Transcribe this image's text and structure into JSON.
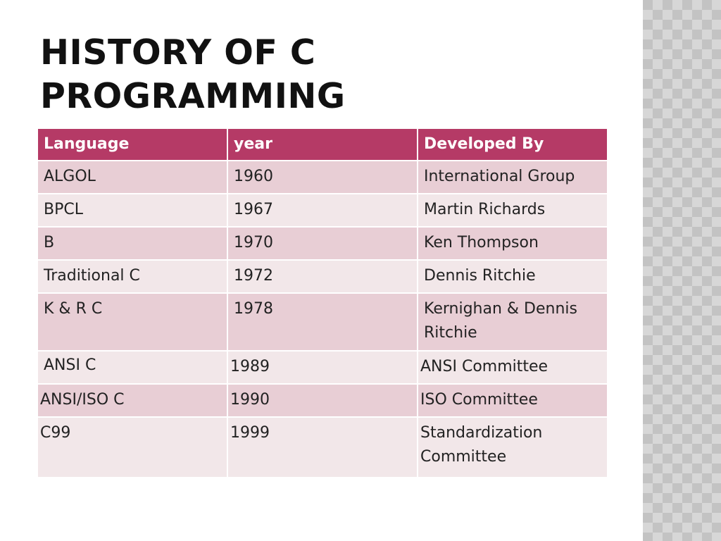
{
  "slide": {
    "title_line1": "HISTORY OF C",
    "title_line2": "PROGRAMMING"
  },
  "table": {
    "headers": [
      "Language",
      "year",
      "Developed By"
    ],
    "rows": [
      [
        "ALGOL",
        "1960",
        "International Group"
      ],
      [
        "BPCL",
        "1967",
        "Martin Richards"
      ],
      [
        "B",
        "1970",
        "Ken Thompson"
      ],
      [
        "Traditional C",
        "1972",
        "Dennis Ritchie"
      ],
      [
        "K & R C",
        "1978",
        "Kernighan & Dennis Ritchie"
      ],
      [
        "ANSI C",
        "1989",
        "ANSI Committee"
      ],
      [
        "ANSI/ISO C",
        "1990",
        "ISO Committee"
      ],
      [
        "C99",
        "1999",
        "Standardization Committee"
      ]
    ]
  },
  "colors": {
    "header": "#b53a66",
    "row_dark": "#e8ced5",
    "row_light": "#f2e7e9"
  }
}
